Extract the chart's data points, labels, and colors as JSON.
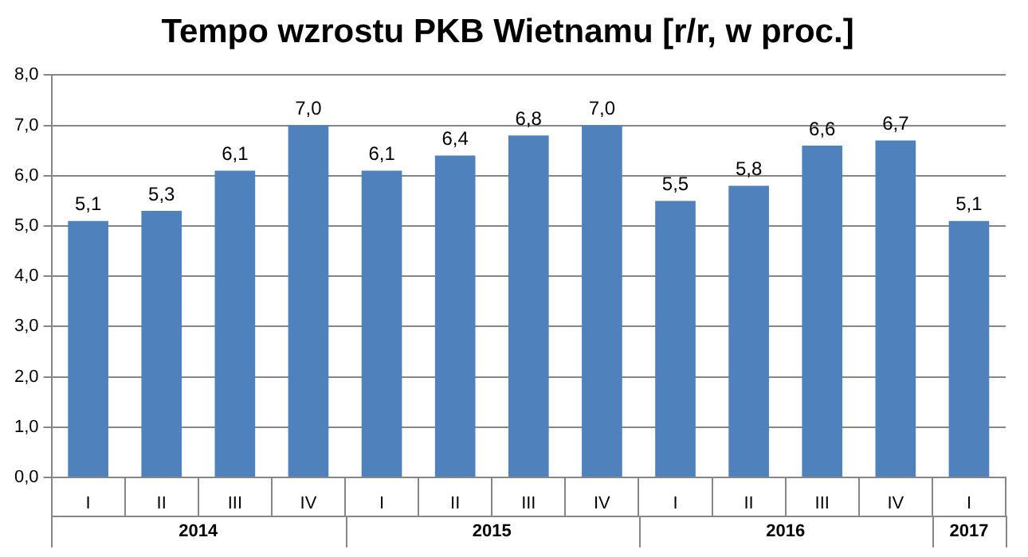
{
  "chart_data": {
    "type": "bar",
    "title": "Tempo wzrostu PKB Wietnamu [r/r, w proc.]",
    "categories": [
      "I",
      "II",
      "III",
      "IV",
      "I",
      "II",
      "III",
      "IV",
      "I",
      "II",
      "III",
      "IV",
      "I"
    ],
    "values": [
      5.1,
      5.3,
      6.1,
      7.0,
      6.1,
      6.4,
      6.8,
      7.0,
      5.5,
      5.8,
      6.6,
      6.7,
      5.1
    ],
    "value_labels": [
      "5,1",
      "5,3",
      "6,1",
      "7,0",
      "6,1",
      "6,4",
      "6,8",
      "7,0",
      "5,5",
      "5,8",
      "6,6",
      "6,7",
      "5,1"
    ],
    "color": "#4f81bd",
    "ylim": [
      0,
      8
    ],
    "yticks": [
      {
        "value": 0,
        "label": "0,0"
      },
      {
        "value": 1,
        "label": "1,0"
      },
      {
        "value": 2,
        "label": "2,0"
      },
      {
        "value": 3,
        "label": "3,0"
      },
      {
        "value": 4,
        "label": "4,0"
      },
      {
        "value": 5,
        "label": "5,0"
      },
      {
        "value": 6,
        "label": "6,0"
      },
      {
        "value": 7,
        "label": "7,0"
      },
      {
        "value": 8,
        "label": "8,0"
      }
    ],
    "grid": "y",
    "annotations": [
      "2014",
      "2015",
      "2016",
      "2017"
    ]
  }
}
